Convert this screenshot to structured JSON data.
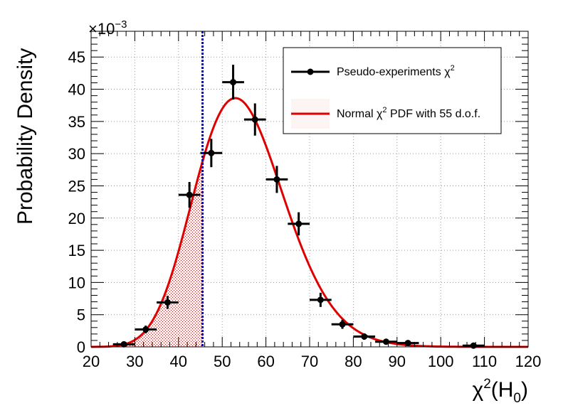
{
  "chart_data": {
    "type": "scatter",
    "x_ticks": [
      "20",
      "30",
      "40",
      "50",
      "60",
      "70",
      "80",
      "90",
      "100",
      "110",
      "120"
    ],
    "y_ticks": [
      "0",
      "5",
      "10",
      "15",
      "20",
      "25",
      "30",
      "35",
      "40",
      "45"
    ],
    "y_multiplier": "×10",
    "y_multiplier_exp": "−3",
    "ylabel": "Probability Density",
    "xlabel": {
      "base": "χ",
      "sup": "2",
      "open": "(H",
      "sub": "0",
      "close": ")"
    },
    "xlim": [
      20,
      120
    ],
    "ylim": [
      0,
      49
    ],
    "grid": true,
    "legend_position": "top-right",
    "series": [
      {
        "name": "Pseudo-experiments χ",
        "name_sup": "2",
        "kind": "points-with-errors",
        "color": "#000000",
        "bin_halfwidth": 2.5,
        "points": [
          {
            "x": 27.5,
            "y": 0.4,
            "err": 0.3
          },
          {
            "x": 32.5,
            "y": 2.7,
            "err": 0.6
          },
          {
            "x": 37.5,
            "y": 6.9,
            "err": 1.0
          },
          {
            "x": 42.5,
            "y": 23.6,
            "err": 2.0
          },
          {
            "x": 47.5,
            "y": 30.1,
            "err": 2.2
          },
          {
            "x": 52.5,
            "y": 41.1,
            "err": 2.7
          },
          {
            "x": 57.5,
            "y": 35.3,
            "err": 2.5
          },
          {
            "x": 62.5,
            "y": 26.0,
            "err": 2.1
          },
          {
            "x": 67.5,
            "y": 19.1,
            "err": 1.8
          },
          {
            "x": 72.5,
            "y": 7.3,
            "err": 1.1
          },
          {
            "x": 77.5,
            "y": 3.5,
            "err": 0.7
          },
          {
            "x": 82.5,
            "y": 1.6,
            "err": 0.5
          },
          {
            "x": 87.5,
            "y": 0.8,
            "err": 0.35
          },
          {
            "x": 92.5,
            "y": 0.6,
            "err": 0.3
          },
          {
            "x": 107.5,
            "y": 0.2,
            "err": 0.2
          }
        ]
      },
      {
        "name": "Normal χ",
        "name_sup": "2",
        "name_rest": " PDF with 55 d.o.f.",
        "kind": "chi2-pdf",
        "dof": 55,
        "color": "#e00000"
      }
    ],
    "observed_line": {
      "x": 45.5,
      "color": "#0000d0"
    },
    "shaded_region": {
      "from": 25,
      "to": 45.5,
      "color": "#8b0000"
    }
  }
}
